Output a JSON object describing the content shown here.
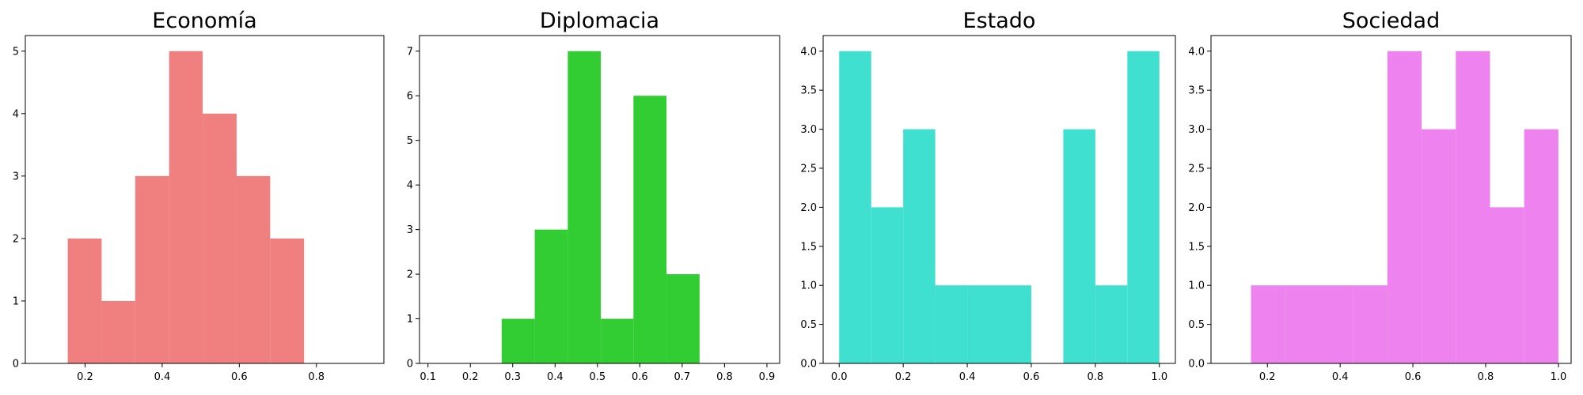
{
  "chart_data": [
    {
      "type": "histogram",
      "title": "Economía",
      "color": "#F08080",
      "xlim": [
        0.045,
        0.975
      ],
      "ylim": [
        0,
        5.25
      ],
      "xticks": [
        0.2,
        0.4,
        0.6,
        0.8
      ],
      "xtick_labels": [
        "0.2",
        "0.4",
        "0.6",
        "0.8"
      ],
      "yticks": [
        0,
        1,
        2,
        3,
        4,
        5
      ],
      "ytick_labels": [
        "0",
        "1",
        "2",
        "3",
        "4",
        "5"
      ],
      "bins": [
        {
          "x0": 0.155,
          "x1": 0.243,
          "count": 2
        },
        {
          "x0": 0.243,
          "x1": 0.33,
          "count": 1
        },
        {
          "x0": 0.33,
          "x1": 0.418,
          "count": 3
        },
        {
          "x0": 0.418,
          "x1": 0.505,
          "count": 5
        },
        {
          "x0": 0.505,
          "x1": 0.593,
          "count": 4
        },
        {
          "x0": 0.593,
          "x1": 0.68,
          "count": 3
        },
        {
          "x0": 0.68,
          "x1": 0.768,
          "count": 2
        }
      ]
    },
    {
      "type": "histogram",
      "title": "Diplomacia",
      "color": "#32CD32",
      "xlim": [
        0.08,
        0.93
      ],
      "ylim": [
        0,
        7.35
      ],
      "xticks": [
        0.1,
        0.2,
        0.3,
        0.4,
        0.5,
        0.6,
        0.7,
        0.8,
        0.9
      ],
      "xtick_labels": [
        "0.1",
        "0.2",
        "0.3",
        "0.4",
        "0.5",
        "0.6",
        "0.7",
        "0.8",
        "0.9"
      ],
      "yticks": [
        0,
        1,
        2,
        3,
        4,
        5,
        6,
        7
      ],
      "ytick_labels": [
        "0",
        "1",
        "2",
        "3",
        "4",
        "5",
        "6",
        "7"
      ],
      "bins": [
        {
          "x0": 0.274,
          "x1": 0.352,
          "count": 1
        },
        {
          "x0": 0.352,
          "x1": 0.43,
          "count": 3
        },
        {
          "x0": 0.43,
          "x1": 0.508,
          "count": 7
        },
        {
          "x0": 0.508,
          "x1": 0.585,
          "count": 1
        },
        {
          "x0": 0.585,
          "x1": 0.663,
          "count": 6
        },
        {
          "x0": 0.663,
          "x1": 0.741,
          "count": 2
        }
      ]
    },
    {
      "type": "histogram",
      "title": "Estado",
      "color": "#40E0D0",
      "xlim": [
        -0.05,
        1.05
      ],
      "ylim": [
        0,
        4.2
      ],
      "xticks": [
        0.0,
        0.2,
        0.4,
        0.6,
        0.8,
        1.0
      ],
      "xtick_labels": [
        "0.0",
        "0.2",
        "0.4",
        "0.6",
        "0.8",
        "1.0"
      ],
      "yticks": [
        0,
        0.5,
        1.0,
        1.5,
        2.0,
        2.5,
        3.0,
        3.5,
        4.0
      ],
      "ytick_labels": [
        "0.0",
        "0.5",
        "1.0",
        "1.5",
        "2.0",
        "2.5",
        "3.0",
        "3.5",
        "4.0"
      ],
      "bins": [
        {
          "x0": 0.0,
          "x1": 0.1,
          "count": 4
        },
        {
          "x0": 0.1,
          "x1": 0.2,
          "count": 2
        },
        {
          "x0": 0.2,
          "x1": 0.3,
          "count": 3
        },
        {
          "x0": 0.3,
          "x1": 0.4,
          "count": 1
        },
        {
          "x0": 0.4,
          "x1": 0.5,
          "count": 1
        },
        {
          "x0": 0.5,
          "x1": 0.6,
          "count": 1
        },
        {
          "x0": 0.6,
          "x1": 0.7,
          "count": 0
        },
        {
          "x0": 0.7,
          "x1": 0.8,
          "count": 3
        },
        {
          "x0": 0.8,
          "x1": 0.9,
          "count": 1
        },
        {
          "x0": 0.9,
          "x1": 1.0,
          "count": 4
        }
      ]
    },
    {
      "type": "histogram",
      "title": "Sociedad",
      "color": "#EE82EE",
      "xlim": [
        0.045,
        1.035
      ],
      "ylim": [
        0,
        4.2
      ],
      "xticks": [
        0.2,
        0.4,
        0.6,
        0.8,
        1.0
      ],
      "xtick_labels": [
        "0.2",
        "0.4",
        "0.6",
        "0.8",
        "1.0"
      ],
      "yticks": [
        0,
        0.5,
        1.0,
        1.5,
        2.0,
        2.5,
        3.0,
        3.5,
        4.0
      ],
      "ytick_labels": [
        "0.0",
        "0.5",
        "1.0",
        "1.5",
        "2.0",
        "2.5",
        "3.0",
        "3.5",
        "4.0"
      ],
      "bins": [
        {
          "x0": 0.155,
          "x1": 0.248,
          "count": 1
        },
        {
          "x0": 0.248,
          "x1": 0.342,
          "count": 1
        },
        {
          "x0": 0.342,
          "x1": 0.436,
          "count": 1
        },
        {
          "x0": 0.436,
          "x1": 0.53,
          "count": 1
        },
        {
          "x0": 0.53,
          "x1": 0.624,
          "count": 4
        },
        {
          "x0": 0.624,
          "x1": 0.718,
          "count": 3
        },
        {
          "x0": 0.718,
          "x1": 0.812,
          "count": 4
        },
        {
          "x0": 0.812,
          "x1": 0.906,
          "count": 2
        },
        {
          "x0": 0.906,
          "x1": 1.0,
          "count": 3
        }
      ]
    }
  ]
}
